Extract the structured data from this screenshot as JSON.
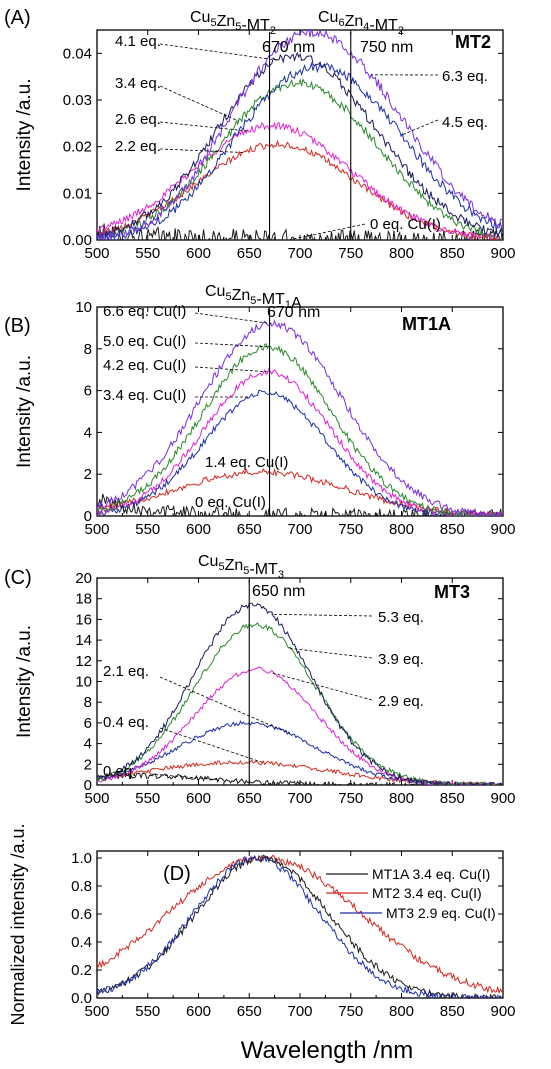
{
  "figure": {
    "xlabel": "Wavelength /nm"
  },
  "colors": {
    "black": "#1a1a1a",
    "red": "#d42a22",
    "blue": "#1c2fa8",
    "green": "#2a8a28",
    "magenta": "#e022d8",
    "purple": "#7a2ee0",
    "navy": "#1a1a5c"
  },
  "chart_data": [
    {
      "panel": "(A)",
      "type": "line",
      "title": "MT2",
      "ylabel": "Intensity /a.u.",
      "xlim": [
        500,
        900
      ],
      "ylim": [
        0,
        0.045
      ],
      "xticks": [
        "500",
        "550",
        "600",
        "650",
        "700",
        "750",
        "800",
        "850",
        "900"
      ],
      "yticks": [
        "0.00",
        "0.01",
        "0.02",
        "0.03",
        "0.04"
      ],
      "vlines": [
        670,
        750
      ],
      "vline_labels": [
        {
          "species": "Cu5Zn5-MT2",
          "nm": "670 nm"
        },
        {
          "species": "Cu6Zn4-MT2",
          "nm": "750 nm"
        }
      ],
      "series": [
        {
          "name": "0 eq. Cu(I)",
          "color": "#1a1a1a",
          "noise": 0.0022,
          "components": [
            [
              0.0015,
              500,
              60
            ]
          ],
          "x": [
            500,
            550,
            600,
            650,
            700,
            750,
            800,
            850,
            900
          ],
          "y": [
            0.002,
            0.001,
            0.0005,
            0.0005,
            0.0003,
            0.0003,
            0.0003,
            0.0003,
            0.0003
          ]
        },
        {
          "name": "2.2 eq.",
          "color": "#d42a22",
          "noise": 0.0007,
          "components": [
            [
              0.0205,
              678,
              78
            ]
          ],
          "x": [
            500,
            550,
            600,
            650,
            680,
            700,
            750,
            800,
            850,
            900
          ],
          "y": [
            0.0055,
            0.0075,
            0.012,
            0.018,
            0.0205,
            0.019,
            0.015,
            0.011,
            0.008,
            0.006
          ]
        },
        {
          "name": "2.6 eq.",
          "color": "#e022d8",
          "noise": 0.0008,
          "components": [
            [
              0.0245,
              672,
              78
            ]
          ],
          "x": [
            500,
            550,
            600,
            650,
            675,
            700,
            750,
            800,
            850,
            900
          ],
          "y": [
            0.006,
            0.008,
            0.014,
            0.022,
            0.0245,
            0.023,
            0.018,
            0.013,
            0.01,
            0.007
          ]
        },
        {
          "name": "3.4 eq.",
          "color": "#2a8a28",
          "noise": 0.0009,
          "components": [
            [
              0.027,
              675,
              65
            ],
            [
              0.013,
              755,
              60
            ]
          ],
          "x": [
            500,
            550,
            600,
            650,
            700,
            750,
            800,
            850,
            900
          ],
          "y": [
            0.007,
            0.01,
            0.016,
            0.025,
            0.029,
            0.028,
            0.022,
            0.016,
            0.009
          ]
        },
        {
          "name": "4.1 eq.",
          "color": "#1a1a5c",
          "noise": 0.001,
          "components": [
            [
              0.03,
              672,
              66
            ],
            [
              0.016,
              750,
              65
            ]
          ],
          "x": [
            500,
            550,
            600,
            650,
            700,
            750,
            800,
            850,
            900
          ],
          "y": [
            0.008,
            0.012,
            0.02,
            0.032,
            0.035,
            0.033,
            0.026,
            0.018,
            0.01
          ]
        },
        {
          "name": "4.5 eq.",
          "color": "#1c2fa8",
          "noise": 0.001,
          "components": [
            [
              0.015,
              665,
              60
            ],
            [
              0.029,
              745,
              70
            ]
          ],
          "x": [
            500,
            550,
            600,
            650,
            700,
            750,
            800,
            850,
            900
          ],
          "y": [
            0.007,
            0.01,
            0.016,
            0.027,
            0.034,
            0.035,
            0.03,
            0.02,
            0.01
          ]
        },
        {
          "name": "6.3 eq.",
          "color": "#7a2ee0",
          "noise": 0.0011,
          "components": [
            [
              0.02,
              665,
              60
            ],
            [
              0.033,
              745,
              72
            ]
          ],
          "x": [
            500,
            550,
            600,
            650,
            700,
            750,
            800,
            850,
            900
          ],
          "y": [
            0.009,
            0.013,
            0.022,
            0.035,
            0.039,
            0.04,
            0.034,
            0.022,
            0.011
          ]
        }
      ],
      "annotations": [
        {
          "text": "4.1 eq.",
          "series": "4.1 eq."
        },
        {
          "text": "3.4 eq.",
          "series": "3.4 eq."
        },
        {
          "text": "2.6 eq.",
          "series": "2.6 eq."
        },
        {
          "text": "2.2 eq.",
          "series": "2.2 eq."
        },
        {
          "text": "6.3 eq.",
          "series": "6.3 eq."
        },
        {
          "text": "4.5 eq.",
          "series": "4.5 eq."
        },
        {
          "text": "0 eq. Cu(I)",
          "series": "0 eq. Cu(I)"
        }
      ]
    },
    {
      "panel": "(B)",
      "type": "line",
      "title": "MT1A",
      "ylabel": "Intensity /a.u.",
      "xlim": [
        500,
        900
      ],
      "ylim": [
        0,
        10
      ],
      "xticks": [
        "500",
        "550",
        "600",
        "650",
        "700",
        "750",
        "800",
        "850",
        "900"
      ],
      "yticks": [
        "0",
        "2",
        "4",
        "6",
        "8",
        "10"
      ],
      "vlines": [
        670
      ],
      "vline_labels": [
        {
          "species": "Cu5Zn5-MT1A",
          "nm": "670 nm"
        }
      ],
      "series": [
        {
          "name": "0 eq. Cu(I)",
          "color": "#1a1a1a",
          "noise": 0.35,
          "components": [
            [
              0.8,
              500,
              55
            ]
          ],
          "x": [
            500,
            550,
            600,
            650,
            700,
            750,
            800,
            850,
            900
          ],
          "y": [
            0.8,
            0.5,
            0.3,
            0.2,
            0.15,
            0.1,
            0.1,
            0.1,
            0.1
          ]
        },
        {
          "name": "1.4 eq. Cu(I)",
          "color": "#d42a22",
          "noise": 0.15,
          "components": [
            [
              2.1,
              662,
              85
            ]
          ],
          "x": [
            500,
            550,
            600,
            650,
            670,
            700,
            750,
            800,
            850,
            900
          ],
          "y": [
            0.7,
            1.0,
            1.6,
            2.0,
            2.1,
            1.9,
            1.4,
            0.9,
            0.6,
            0.4
          ]
        },
        {
          "name": "3.4 eq. Cu(I)",
          "color": "#1c2fa8",
          "noise": 0.15,
          "components": [
            [
              5.9,
              666,
              60
            ]
          ],
          "x": [
            500,
            550,
            600,
            650,
            665,
            700,
            750,
            800,
            850,
            900
          ],
          "y": [
            0.9,
            1.5,
            3.2,
            5.6,
            5.9,
            4.8,
            2.6,
            1.3,
            0.8,
            0.8
          ]
        },
        {
          "name": "4.2 eq. Cu(I)",
          "color": "#e022d8",
          "noise": 0.16,
          "components": [
            [
              6.9,
              668,
              62
            ]
          ],
          "x": [
            500,
            550,
            600,
            650,
            668,
            700,
            750,
            800,
            850,
            900
          ],
          "y": [
            1.0,
            1.7,
            3.7,
            6.5,
            6.9,
            5.7,
            3.1,
            1.5,
            0.9,
            0.9
          ]
        },
        {
          "name": "5.0 eq. Cu(I)",
          "color": "#2a8a28",
          "noise": 0.17,
          "components": [
            [
              8.1,
              668,
              64
            ]
          ],
          "x": [
            500,
            550,
            600,
            650,
            668,
            700,
            750,
            800,
            850,
            900
          ],
          "y": [
            1.1,
            2.0,
            4.3,
            7.6,
            8.1,
            6.8,
            3.8,
            1.8,
            1.0,
            1.0
          ]
        },
        {
          "name": "6.6 eq. Cu(I)",
          "color": "#7a2ee0",
          "noise": 0.18,
          "components": [
            [
              9.2,
              672,
              70
            ]
          ],
          "x": [
            500,
            550,
            600,
            650,
            672,
            700,
            750,
            800,
            850,
            900
          ],
          "y": [
            1.3,
            2.3,
            4.8,
            8.5,
            9.2,
            8.2,
            5.0,
            2.5,
            1.3,
            1.1
          ]
        }
      ],
      "annotations": [
        {
          "text": "6.6 eq. Cu(I)",
          "series": "6.6 eq. Cu(I)"
        },
        {
          "text": "5.0 eq. Cu(I)",
          "series": "5.0 eq. Cu(I)"
        },
        {
          "text": "4.2 eq. Cu(I)",
          "series": "4.2 eq. Cu(I)"
        },
        {
          "text": "3.4 eq. Cu(I)",
          "series": "3.4 eq. Cu(I)"
        },
        {
          "text": "1.4 eq. Cu(I)",
          "series": "1.4 eq. Cu(I)"
        },
        {
          "text": "0 eq. Cu(I)",
          "series": "0 eq. Cu(I)"
        }
      ]
    },
    {
      "panel": "(C)",
      "type": "line",
      "title": "MT3",
      "ylabel": "Intensity /a.u.",
      "xlim": [
        500,
        900
      ],
      "ylim": [
        0,
        20
      ],
      "xticks": [
        "500",
        "550",
        "600",
        "650",
        "700",
        "750",
        "800",
        "850",
        "900"
      ],
      "yticks": [
        "0",
        "2",
        "4",
        "6",
        "8",
        "10",
        "12",
        "14",
        "16",
        "18",
        "20"
      ],
      "vlines": [
        650
      ],
      "vline_labels": [
        {
          "species": "Cu5Zn5-MT3",
          "nm": "650 nm"
        }
      ],
      "series": [
        {
          "name": "0 eq.",
          "color": "#1a1a1a",
          "noise": 0.25,
          "components": [
            [
              0.9,
              540,
              75
            ]
          ],
          "x": [
            500,
            550,
            600,
            650,
            700,
            750,
            800,
            850,
            900
          ],
          "y": [
            0.9,
            0.9,
            0.6,
            0.4,
            0.3,
            0.2,
            0.2,
            0.2,
            0.2
          ]
        },
        {
          "name": "0.4 eq.",
          "color": "#d42a22",
          "noise": 0.2,
          "components": [
            [
              2.2,
              640,
              90
            ]
          ],
          "x": [
            500,
            550,
            600,
            650,
            700,
            750,
            800,
            850,
            900
          ],
          "y": [
            1.0,
            1.3,
            2.0,
            2.2,
            1.7,
            1.0,
            0.6,
            0.4,
            0.3
          ]
        },
        {
          "name": "2.1 eq.",
          "color": "#1c2fa8",
          "noise": 0.2,
          "components": [
            [
              6.0,
              648,
              68
            ]
          ],
          "x": [
            500,
            550,
            600,
            650,
            700,
            750,
            800,
            850,
            900
          ],
          "y": [
            1.2,
            1.8,
            3.8,
            6.0,
            4.3,
            1.9,
            0.8,
            0.5,
            0.3
          ]
        },
        {
          "name": "2.9 eq.",
          "color": "#e022d8",
          "noise": 0.22,
          "components": [
            [
              11.2,
              657,
              60
            ]
          ],
          "x": [
            500,
            550,
            600,
            650,
            660,
            700,
            750,
            800,
            850,
            900
          ],
          "y": [
            1.2,
            2.4,
            6.2,
            10.9,
            11.2,
            8.4,
            3.7,
            1.5,
            0.7,
            0.4
          ]
        },
        {
          "name": "3.9 eq.",
          "color": "#2a8a28",
          "noise": 0.26,
          "components": [
            [
              15.5,
              656,
              60
            ]
          ],
          "x": [
            500,
            550,
            600,
            650,
            660,
            700,
            750,
            800,
            850,
            900
          ],
          "y": [
            1.3,
            3.0,
            8.5,
            15.1,
            15.5,
            11.7,
            5.2,
            2.0,
            0.8,
            0.5
          ]
        },
        {
          "name": "5.3 eq.",
          "color": "#1a1a5c",
          "noise": 0.28,
          "components": [
            [
              17.4,
              653,
              58
            ]
          ],
          "x": [
            500,
            550,
            600,
            650,
            653,
            700,
            750,
            800,
            850,
            900
          ],
          "y": [
            1.3,
            3.3,
            9.6,
            17.2,
            17.4,
            12.5,
            5.3,
            2.0,
            0.8,
            0.5
          ]
        }
      ],
      "annotations": [
        {
          "text": "5.3 eq.",
          "series": "5.3 eq."
        },
        {
          "text": "3.9 eq.",
          "series": "3.9 eq."
        },
        {
          "text": "2.9 eq.",
          "series": "2.9 eq."
        },
        {
          "text": "2.1 eq.",
          "series": "2.1 eq."
        },
        {
          "text": "0.4 eq.",
          "series": "0.4 eq."
        },
        {
          "text": "0 eq.",
          "series": "0 eq."
        }
      ]
    },
    {
      "panel": "(D)",
      "type": "line",
      "title": "",
      "ylabel": "Normalized intensity /a.u.",
      "xlim": [
        500,
        900
      ],
      "ylim": [
        0,
        1.05
      ],
      "xticks": [
        "500",
        "550",
        "600",
        "650",
        "700",
        "750",
        "800",
        "850",
        "900"
      ],
      "yticks": [
        "0.0",
        "0.2",
        "0.4",
        "0.6",
        "0.8",
        "1.0"
      ],
      "vlines": [],
      "vline_labels": [],
      "series": [
        {
          "name": "MT2 3.4 eq. Cu(I)",
          "color": "#d42a22",
          "noise": 0.025,
          "components": [
            [
              1.0,
              665,
              95
            ]
          ],
          "x": [
            500,
            550,
            600,
            650,
            665,
            700,
            750,
            800,
            850,
            900
          ],
          "y": [
            0.16,
            0.24,
            0.55,
            0.93,
            1.0,
            0.93,
            0.75,
            0.52,
            0.3,
            0.12
          ]
        },
        {
          "name": "MT1A 3.4 eq. Cu(I)",
          "color": "#1a1a1a",
          "noise": 0.025,
          "components": [
            [
              1.0,
              663,
              65
            ]
          ],
          "x": [
            500,
            550,
            600,
            650,
            663,
            700,
            750,
            800,
            850,
            900
          ],
          "y": [
            0.14,
            0.24,
            0.55,
            0.95,
            1.0,
            0.82,
            0.45,
            0.2,
            0.08,
            0.05
          ]
        },
        {
          "name": "MT3 2.9 eq. Cu(I)",
          "color": "#1c2fa8",
          "noise": 0.025,
          "components": [
            [
              1.0,
              657,
              62
            ]
          ],
          "x": [
            500,
            550,
            600,
            650,
            657,
            700,
            750,
            800,
            850,
            900
          ],
          "y": [
            0.1,
            0.22,
            0.58,
            0.97,
            1.0,
            0.72,
            0.33,
            0.13,
            0.05,
            0.04
          ]
        }
      ],
      "legend": [
        "MT1A 3.4 eq. Cu(I)",
        "MT2 3.4 eq. Cu(I)",
        "MT3 2.9 eq. Cu(I)"
      ],
      "annotations": []
    }
  ]
}
